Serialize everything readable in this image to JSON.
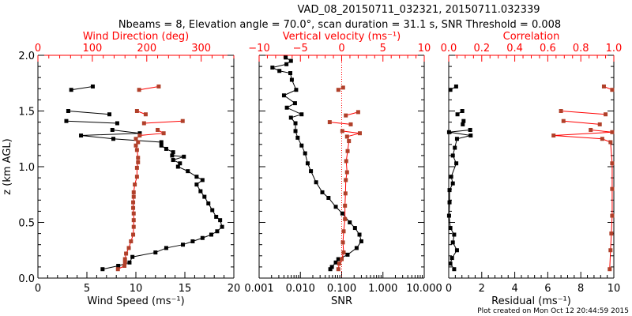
{
  "title_line1": "VAD_08_20150711_032321, 20150711.032339",
  "title_line2": "Nbeams = 8, Elevation angle = 70.0°, scan duration = 31.1 s, SNR Threshold = 0.008",
  "footer": "Plot created on Mon Oct 12 20:44:59 2015",
  "colors": {
    "axis_top": "#ff0000",
    "primary": "#000000",
    "secondary_marker": "#b0402a",
    "secondary_line": "#ff0000"
  },
  "chart_data": [
    {
      "type": "line",
      "ylabel": "z (km AGL)",
      "ylim": [
        0,
        2
      ],
      "yticks": [
        "0.0",
        "0.5",
        "1.0",
        "1.5",
        "2.0"
      ],
      "xlabel": "Wind Speed (ms⁻¹)",
      "xlim": [
        0,
        20
      ],
      "xticks": [
        "0",
        "5",
        "10",
        "15",
        "20"
      ],
      "x2label": "Wind Direction (deg)",
      "x2lim": [
        0,
        360
      ],
      "x2ticks": [
        "0",
        "100",
        "200",
        "300"
      ],
      "series": [
        {
          "name": "Wind Speed",
          "axis": "bottom",
          "segments": [
            [
              [
                6.6,
                0.08
              ],
              [
                8.2,
                0.11
              ],
              [
                9.35,
                0.14
              ],
              [
                9.65,
                0.19
              ],
              [
                12.0,
                0.23
              ],
              [
                13.1,
                0.27
              ],
              [
                14.8,
                0.3
              ],
              [
                15.8,
                0.33
              ],
              [
                16.8,
                0.36
              ],
              [
                17.7,
                0.39
              ],
              [
                18.3,
                0.42
              ],
              [
                18.8,
                0.46
              ],
              [
                18.6,
                0.52
              ],
              [
                18.2,
                0.55
              ],
              [
                17.8,
                0.61
              ],
              [
                17.4,
                0.67
              ],
              [
                17.0,
                0.73
              ],
              [
                16.6,
                0.78
              ],
              [
                16.2,
                0.84
              ],
              [
                16.8,
                0.88
              ],
              [
                16.2,
                0.91
              ],
              [
                15.3,
                0.96
              ],
              [
                14.3,
                1.0
              ],
              [
                14.5,
                1.03
              ],
              [
                13.8,
                1.06
              ],
              [
                14.9,
                1.09
              ],
              [
                13.7,
                1.1
              ],
              [
                13.8,
                1.13
              ],
              [
                13.1,
                1.16
              ],
              [
                12.6,
                1.19
              ],
              [
                12.6,
                1.22
              ],
              [
                7.7,
                1.25
              ],
              [
                4.4,
                1.28
              ],
              [
                10.4,
                1.3
              ],
              [
                7.6,
                1.33
              ]
            ],
            [
              [
                8.1,
                1.39
              ],
              [
                2.9,
                1.41
              ]
            ],
            [
              [
                7.3,
                1.47
              ],
              [
                3.1,
                1.5
              ]
            ],
            [
              [
                3.4,
                1.69
              ],
              [
                5.6,
                1.72
              ]
            ]
          ]
        },
        {
          "name": "Wind Direction",
          "axis": "top",
          "segments": [
            [
              [
                147,
                0.08
              ],
              [
                159,
                0.11
              ],
              [
                160,
                0.14
              ],
              [
                160,
                0.17
              ],
              [
                162,
                0.22
              ],
              [
                167,
                0.27
              ],
              [
                171,
                0.33
              ],
              [
                175,
                0.39
              ],
              [
                176,
                0.46
              ],
              [
                176,
                0.52
              ],
              [
                176,
                0.58
              ],
              [
                175,
                0.63
              ],
              [
                175,
                0.68
              ],
              [
                176,
                0.73
              ],
              [
                176,
                0.77
              ],
              [
                178,
                0.84
              ],
              [
                182,
                0.91
              ],
              [
                182,
                0.99
              ],
              [
                184,
                1.04
              ],
              [
                184,
                1.08
              ],
              [
                182,
                1.15
              ],
              [
                180,
                1.19
              ],
              [
                184,
                1.22
              ],
              [
                180,
                1.25
              ],
              [
                187,
                1.28
              ],
              [
                231,
                1.3
              ],
              [
                220,
                1.33
              ]
            ],
            [
              [
                195,
                1.39
              ],
              [
                266,
                1.41
              ]
            ],
            [
              [
                198,
                1.47
              ],
              [
                182,
                1.5
              ]
            ],
            [
              [
                186,
                1.69
              ],
              [
                222,
                1.72
              ]
            ]
          ]
        }
      ]
    },
    {
      "type": "line",
      "xlabel": "SNR",
      "xscale": "log",
      "xlim": [
        0.001,
        10
      ],
      "xticks": [
        "0.001",
        "0.010",
        "0.100",
        "1.000",
        "10.000"
      ],
      "x2label": "Vertical velocity (ms⁻¹)",
      "x2lim": [
        -10,
        10
      ],
      "x2ticks": [
        "−10",
        "−5",
        "0",
        "5",
        "10"
      ],
      "reference_line": {
        "axis": "top",
        "value": 0,
        "style": "dotted"
      },
      "series": [
        {
          "name": "SNR",
          "axis": "bottom",
          "segments": [
            [
              [
                0.053,
                0.08
              ],
              [
                0.058,
                0.1
              ],
              [
                0.072,
                0.14
              ],
              [
                0.083,
                0.17
              ],
              [
                0.139,
                0.21
              ],
              [
                0.23,
                0.27
              ],
              [
                0.3,
                0.33
              ],
              [
                0.27,
                0.39
              ],
              [
                0.21,
                0.45
              ],
              [
                0.157,
                0.5
              ],
              [
                0.104,
                0.58
              ],
              [
                0.072,
                0.64
              ],
              [
                0.048,
                0.72
              ],
              [
                0.034,
                0.77
              ],
              [
                0.024,
                0.86
              ],
              [
                0.018,
                0.96
              ],
              [
                0.015,
                1.03
              ],
              [
                0.013,
                1.12
              ],
              [
                0.0107,
                1.19
              ],
              [
                0.0086,
                1.26
              ],
              [
                0.0076,
                1.32
              ],
              [
                0.0076,
                1.39
              ],
              [
                0.0059,
                1.44
              ],
              [
                0.0107,
                1.47
              ],
              [
                0.0047,
                1.53
              ],
              [
                0.0074,
                1.57
              ],
              [
                0.004,
                1.64
              ],
              [
                0.0079,
                1.69
              ],
              [
                0.0062,
                1.78
              ],
              [
                0.0057,
                1.84
              ],
              [
                0.0031,
                1.86
              ],
              [
                0.0021,
                1.89
              ],
              [
                0.0046,
                1.92
              ],
              [
                0.0059,
                1.95
              ],
              [
                0.0044,
                1.98
              ]
            ]
          ]
        },
        {
          "name": "Vertical velocity",
          "axis": "top",
          "segments": [
            [
              [
                -0.4,
                0.08
              ],
              [
                -0.3,
                0.13
              ],
              [
                0.0,
                0.17
              ],
              [
                0.24,
                0.23
              ],
              [
                0.15,
                0.32
              ],
              [
                0.24,
                0.42
              ],
              [
                0.4,
                0.53
              ],
              [
                0.4,
                0.65
              ],
              [
                0.46,
                0.76
              ],
              [
                0.5,
                0.88
              ],
              [
                0.65,
                0.95
              ],
              [
                0.55,
                1.05
              ],
              [
                0.72,
                1.14
              ],
              [
                0.88,
                1.23
              ],
              [
                0.65,
                1.27
              ],
              [
                2.2,
                1.3
              ],
              [
                0.08,
                1.32
              ]
            ],
            [
              [
                1.1,
                1.38
              ],
              [
                -1.45,
                1.4
              ]
            ],
            [
              [
                0.5,
                1.46
              ],
              [
                2.0,
                1.49
              ]
            ],
            [
              [
                -0.4,
                1.69
              ],
              [
                0.17,
                1.71
              ]
            ]
          ]
        }
      ]
    },
    {
      "type": "line",
      "xlabel": "Residual (ms⁻¹)",
      "xlim": [
        0,
        10
      ],
      "xticks": [
        "0",
        "2",
        "4",
        "6",
        "8",
        "10"
      ],
      "x2label": "Correlation",
      "x2lim": [
        0,
        1
      ],
      "x2ticks": [
        "0.0",
        "0.2",
        "0.4",
        "0.6",
        "0.8",
        "1.0"
      ],
      "series": [
        {
          "name": "Residual",
          "axis": "bottom",
          "segments": [
            [
              [
                0.33,
                0.08
              ],
              [
                0.1,
                0.13
              ],
              [
                0.2,
                0.18
              ],
              [
                0.5,
                0.25
              ],
              [
                0.25,
                0.32
              ],
              [
                0.33,
                0.39
              ],
              [
                0.1,
                0.45
              ],
              [
                0.02,
                0.56
              ],
              [
                0.05,
                0.68
              ],
              [
                0.05,
                0.79
              ],
              [
                0.25,
                0.85
              ],
              [
                0.15,
                0.91
              ],
              [
                0.46,
                1.03
              ],
              [
                0.25,
                1.1
              ],
              [
                0.37,
                1.17
              ],
              [
                0.5,
                1.25
              ],
              [
                1.33,
                1.28
              ],
              [
                0.02,
                1.31
              ],
              [
                1.3,
                1.33
              ]
            ],
            [
              [
                0.85,
                1.38
              ],
              [
                0.9,
                1.41
              ]
            ],
            [
              [
                0.53,
                1.47
              ],
              [
                0.82,
                1.5
              ]
            ],
            [
              [
                0.1,
                1.69
              ],
              [
                0.45,
                1.72
              ]
            ]
          ]
        },
        {
          "name": "Correlation",
          "axis": "top",
          "segments": [
            [
              [
                0.975,
                0.08
              ],
              [
                0.98,
                0.25
              ],
              [
                0.985,
                0.4
              ],
              [
                0.99,
                0.56
              ],
              [
                0.99,
                0.8
              ],
              [
                0.99,
                1.03
              ],
              [
                0.98,
                1.22
              ],
              [
                0.93,
                1.25
              ],
              [
                0.635,
                1.28
              ],
              [
                0.99,
                1.31
              ],
              [
                0.86,
                1.33
              ]
            ],
            [
              [
                0.915,
                1.38
              ],
              [
                0.695,
                1.41
              ]
            ],
            [
              [
                0.95,
                1.47
              ],
              [
                0.68,
                1.5
              ]
            ],
            [
              [
                0.99,
                1.69
              ],
              [
                0.94,
                1.72
              ]
            ]
          ]
        }
      ]
    }
  ]
}
